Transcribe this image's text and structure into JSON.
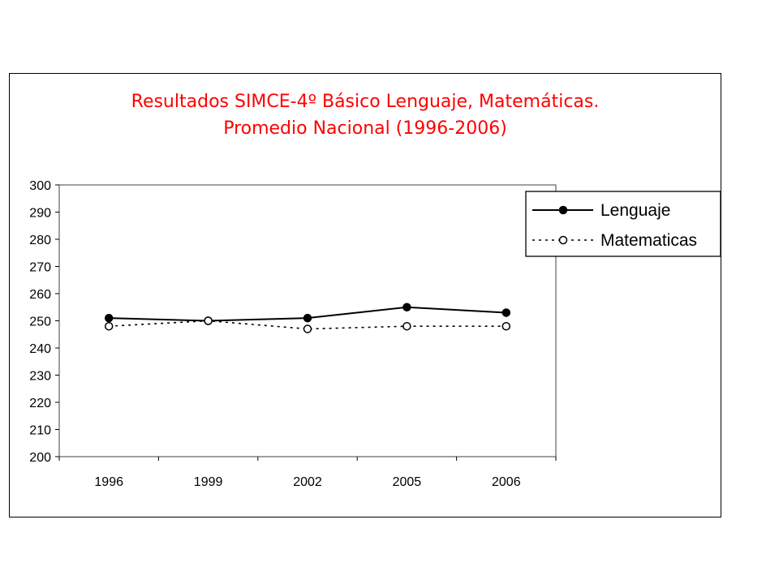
{
  "chart_data": {
    "type": "line",
    "title": "Resultados SIMCE-4º Básico Lenguaje, Matemáticas.",
    "subtitle": "Promedio Nacional (1996-2006)",
    "categories": [
      "1996",
      "1999",
      "2002",
      "2005",
      "2006"
    ],
    "series": [
      {
        "name": "Lenguaje",
        "values": [
          251,
          250,
          251,
          255,
          253
        ],
        "line": "solid",
        "marker": "filled-circle"
      },
      {
        "name": "Matematicas",
        "values": [
          248,
          250,
          247,
          248,
          248
        ],
        "line": "dotted",
        "marker": "open-circle"
      }
    ],
    "ylim": [
      200,
      300
    ],
    "yticks": [
      "200",
      "210",
      "220",
      "230",
      "240",
      "250",
      "260",
      "270",
      "280",
      "290",
      "300"
    ],
    "xlabel": "",
    "ylabel": "",
    "grid": false,
    "legend": "top-right",
    "colors": {
      "title": "#ff0000",
      "lines": "#000000",
      "background": "#ffffff"
    }
  }
}
